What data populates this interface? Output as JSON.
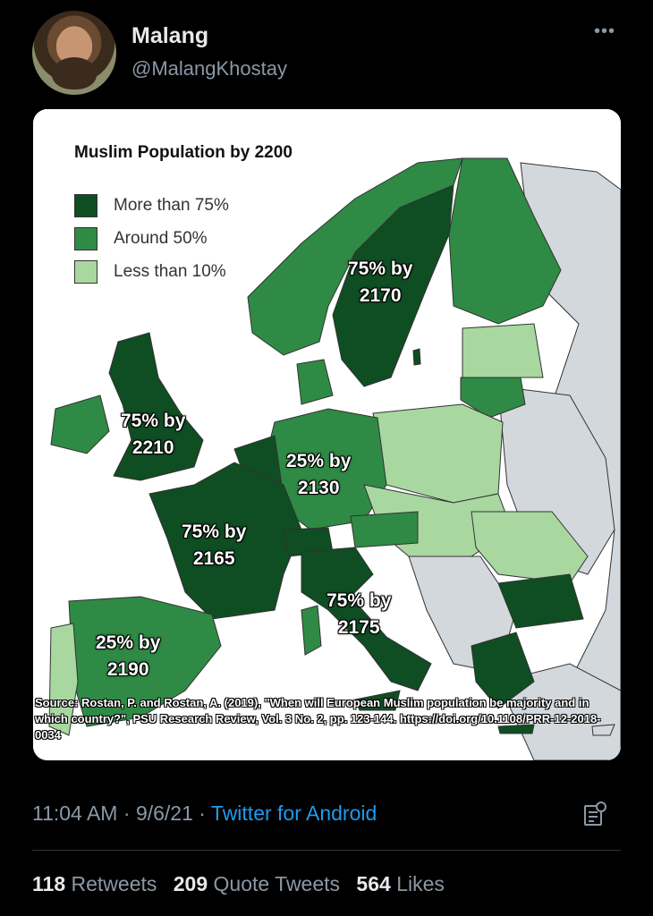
{
  "author": {
    "name": "Malang",
    "handle": "@MalangKhostay"
  },
  "map": {
    "title": "Muslim Population by 2200",
    "legend": [
      {
        "label": "More than 75%",
        "color": "#0f4d22"
      },
      {
        "label": "Around 50%",
        "color": "#2f8a45"
      },
      {
        "label": "Less than 10%",
        "color": "#a8d8a0"
      }
    ],
    "other_color": "#d3d8dd",
    "labels": {
      "scandinavia": [
        "75% by",
        "2170"
      ],
      "uk": [
        "75% by",
        "2210"
      ],
      "germany": [
        "25% by",
        "2130"
      ],
      "france": [
        "75% by",
        "2165"
      ],
      "italy": [
        "75% by",
        "2175"
      ],
      "spain": [
        "25% by",
        "2190"
      ]
    },
    "source": "Source: Rostan, P. and Rostan, A. (2019), \"When will European Muslim population be majority and in which country?\", PSU Research Review, Vol. 3 No. 2, pp. 123-144. https://doi.org/10.1108/PRR-12-2018-0034"
  },
  "tweet_meta": {
    "time": "11:04 AM",
    "date": "9/6/21",
    "client": "Twitter for Android"
  },
  "stats": {
    "retweets_count": "118",
    "retweets_label": "Retweets",
    "quotes_count": "209",
    "quotes_label": "Quote Tweets",
    "likes_count": "564",
    "likes_label": "Likes"
  }
}
